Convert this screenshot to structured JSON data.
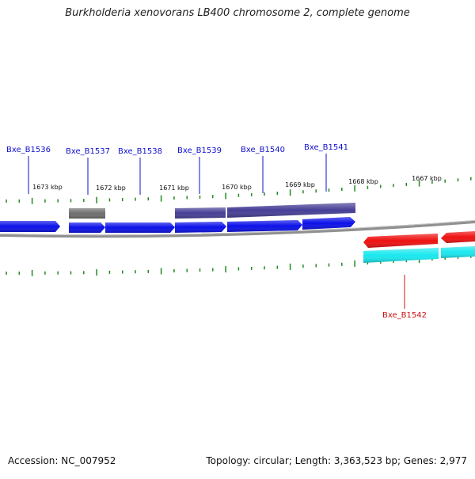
{
  "title": "Burkholderia xenovorans LB400 chromosome 2, complete genome",
  "accession_label": "Accession: NC_007952",
  "summary_label": "Topology: circular; Length: 3,363,523 bp; Genes: 2,977",
  "colors": {
    "background": "#ffffff",
    "backbone": "#808080",
    "tick": "#1f8a1f",
    "gene_blue": "#0b10e8",
    "gene_gray": "#6e6e6e",
    "gene_purple": "#463f96",
    "gene_red": "#ee1111",
    "gene_cyan": "#19e8ef",
    "label_blue": "#1010d0",
    "label_red": "#cc1010"
  },
  "scale_labels": [
    "1673 kbp",
    "1672 kbp",
    "1671 kbp",
    "1670 kbp",
    "1669 kbp",
    "1668 kbp",
    "1667 kbp"
  ],
  "gene_labels": [
    "Bxe_B1536",
    "Bxe_B1537",
    "Bxe_B1538",
    "Bxe_B1539",
    "Bxe_B1540",
    "Bxe_B1541",
    "Bxe_B1542"
  ]
}
